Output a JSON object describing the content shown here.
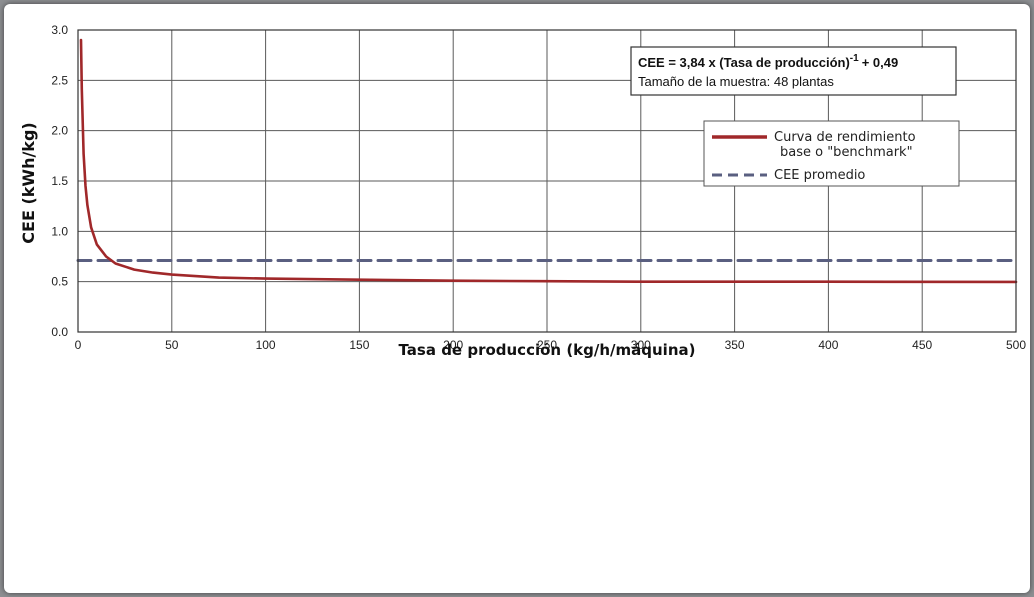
{
  "chart_data": {
    "type": "line",
    "xlabel": "Tasa de producción (kg/h/máquina)",
    "ylabel": "CEE (kWh/kg)",
    "xlim": [
      0,
      500
    ],
    "ylim": [
      0,
      3
    ],
    "xticks": [
      0,
      50,
      100,
      150,
      200,
      250,
      300,
      350,
      400,
      450,
      500
    ],
    "yticks": [
      0.0,
      0.5,
      1.0,
      1.5,
      2.0,
      2.5,
      3.0
    ],
    "ytick_labels": [
      "0.0",
      "0.5",
      "1.0",
      "1.5",
      "2.0",
      "2.5",
      "3.0"
    ],
    "grid": true,
    "legend_position": "top-right",
    "equation": {
      "main": "CEE = 3,84 x (Tasa de producción)",
      "exponent": "-1",
      "tail": "+ 0,49",
      "sample": "Tamaño de la muestra: 48 plantas"
    },
    "series": [
      {
        "name_lines": [
          "Curva de rendimiento",
          "base  o \"benchmark\""
        ],
        "color": "#a0282a",
        "style": "solid",
        "x": [
          1.6,
          2,
          3,
          4,
          5,
          7,
          10,
          15,
          20,
          30,
          40,
          50,
          75,
          100,
          150,
          200,
          250,
          300,
          400,
          500
        ],
        "y": [
          2.9,
          2.41,
          1.77,
          1.45,
          1.26,
          1.04,
          0.87,
          0.75,
          0.68,
          0.62,
          0.59,
          0.57,
          0.54,
          0.53,
          0.52,
          0.51,
          0.505,
          0.5,
          0.5,
          0.498
        ]
      },
      {
        "name": "CEE promedio",
        "color": "#5a5f80",
        "style": "dashed",
        "x": [
          0,
          500
        ],
        "y": [
          0.71,
          0.71
        ]
      }
    ]
  }
}
